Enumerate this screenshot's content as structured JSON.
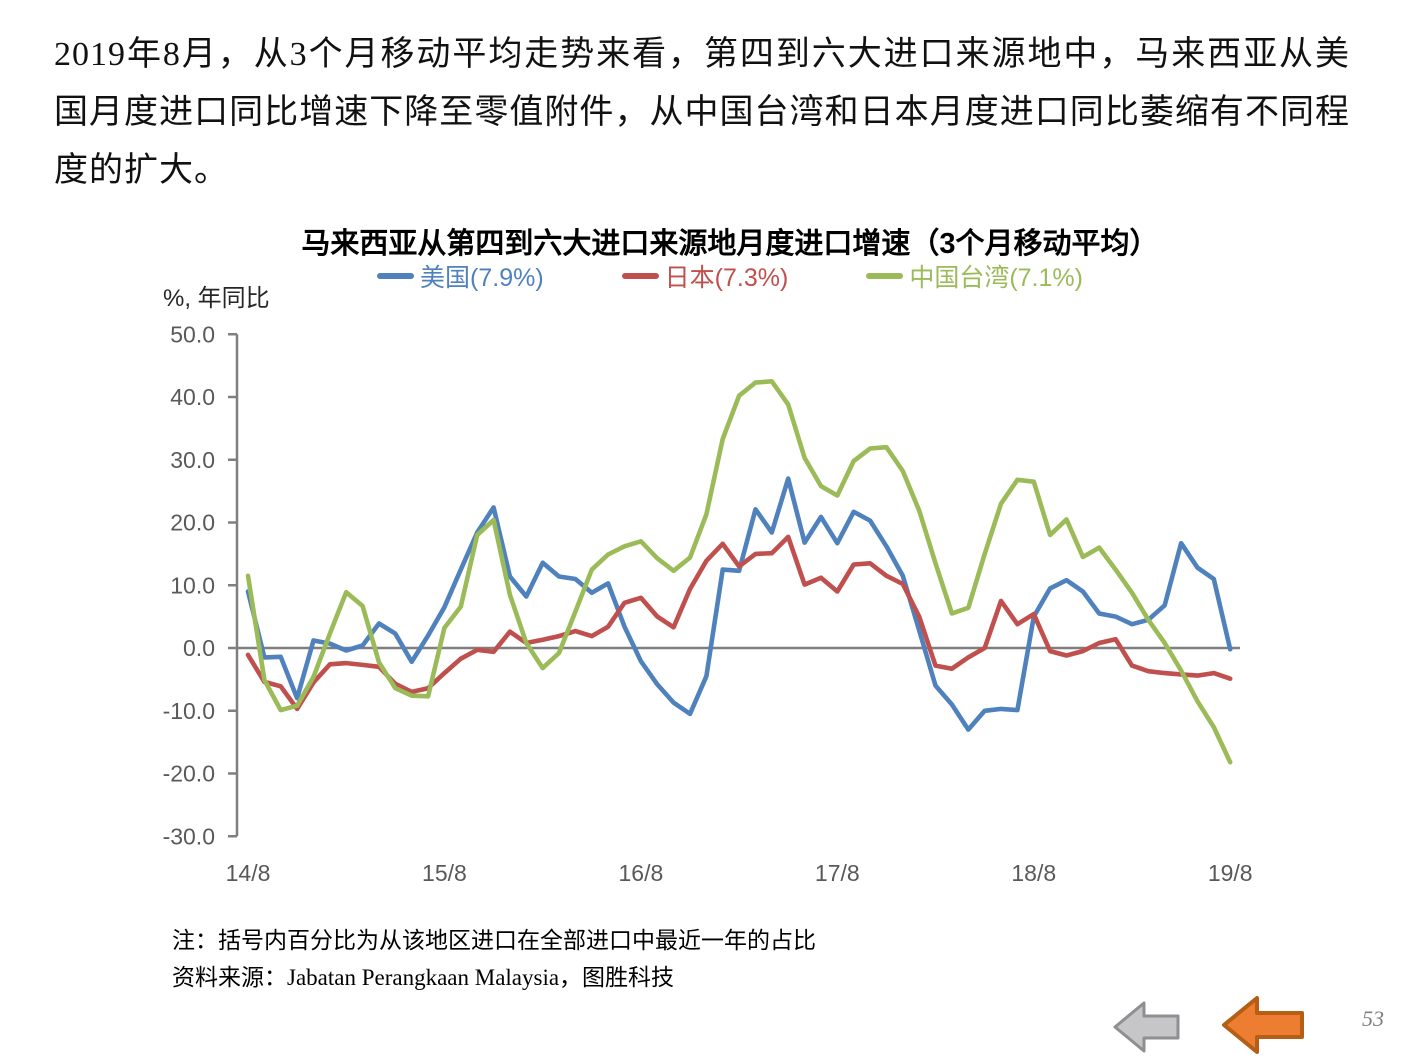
{
  "page": {
    "paragraph": "2019年8月，从3个月移动平均走势来看，第四到六大进口来源地中，马来西亚从美国月度进口同比增速下降至零值附件，从中国台湾和日本月度进口同比萎缩有不同程度的扩大。",
    "page_number": "53"
  },
  "notes": {
    "line1": "注：括号内百分比为从该地区进口在全部进口中最近一年的占比",
    "line2": "资料来源：Jabatan Perangkaan Malaysia，图胜科技"
  },
  "nav": {
    "back_arrow_gray": "left-arrow",
    "back_arrow_orange": "left-arrow"
  },
  "chart_data": {
    "type": "line",
    "title": "马来西亚从第四到六大进口来源地月度进口增速（3个月移动平均）",
    "y_axis_label": "%, 年同比",
    "ylim": [
      -30,
      50
    ],
    "grid": "zero-line-only",
    "legend_position": "top",
    "frequency": "monthly, Aug 2014 (14/8) to Aug 2019 (19/8), 61 points per series",
    "y_ticks": [
      {
        "value": 50,
        "label": "50.0"
      },
      {
        "value": 40,
        "label": "40.0"
      },
      {
        "value": 30,
        "label": "30.0"
      },
      {
        "value": 20,
        "label": "20.0"
      },
      {
        "value": 10,
        "label": "10.0"
      },
      {
        "value": 0,
        "label": "0.0"
      },
      {
        "value": -10,
        "label": "-10.0"
      },
      {
        "value": -20,
        "label": "-20.0"
      },
      {
        "value": -30,
        "label": "-30.0"
      }
    ],
    "x_ticks": [
      {
        "label": "14/8",
        "month_index": 0
      },
      {
        "label": "15/8",
        "month_index": 12
      },
      {
        "label": "16/8",
        "month_index": 24
      },
      {
        "label": "17/8",
        "month_index": 36
      },
      {
        "label": "18/8",
        "month_index": 48
      },
      {
        "label": "19/8",
        "month_index": 60
      }
    ],
    "series": [
      {
        "id": "us",
        "name": "美国(7.9%)",
        "color": "#4F81BD",
        "values": [
          9.0,
          -1.5,
          -1.4,
          -8.0,
          1.2,
          0.7,
          -0.4,
          0.4,
          3.9,
          2.3,
          -2.2,
          2.0,
          6.5,
          12.5,
          18.4,
          22.4,
          11.4,
          8.2,
          13.6,
          11.4,
          11.0,
          8.8,
          10.3,
          3.4,
          -2.1,
          -5.8,
          -8.7,
          -10.5,
          -4.5,
          12.5,
          12.3,
          22.1,
          18.4,
          27.0,
          16.8,
          20.9,
          16.7,
          21.7,
          20.3,
          16.2,
          11.5,
          2.8,
          -6.0,
          -9.0,
          -13.0,
          -10.0,
          -9.7,
          -9.9,
          5.0,
          9.5,
          10.8,
          9.0,
          5.5,
          5.0,
          3.8,
          4.5,
          6.8,
          16.7,
          12.8,
          11.0,
          -0.2
        ]
      },
      {
        "id": "japan",
        "name": "日本(7.3%)",
        "color": "#C0504D",
        "values": [
          -1.1,
          -5.4,
          -6.1,
          -9.7,
          -5.5,
          -2.6,
          -2.4,
          -2.7,
          -3.0,
          -5.7,
          -7.0,
          -6.4,
          -4.0,
          -1.7,
          -0.3,
          -0.6,
          2.6,
          0.8,
          1.3,
          1.9,
          2.7,
          1.9,
          3.4,
          7.2,
          8.0,
          5.0,
          3.3,
          9.4,
          13.9,
          16.6,
          13.0,
          15.0,
          15.1,
          17.7,
          10.1,
          11.2,
          9.0,
          13.3,
          13.5,
          11.5,
          10.2,
          5.0,
          -2.8,
          -3.3,
          -1.5,
          0.0,
          7.5,
          3.8,
          5.4,
          -0.5,
          -1.2,
          -0.5,
          0.8,
          1.4,
          -2.8,
          -3.7,
          -4.0,
          -4.2,
          -4.4,
          -4.0,
          -4.9
        ]
      },
      {
        "id": "taiwan",
        "name": "中国台湾(7.1%)",
        "color": "#9BBB59",
        "values": [
          11.5,
          -5.1,
          -9.9,
          -9.2,
          -4.6,
          2.3,
          8.9,
          6.7,
          -2.3,
          -6.4,
          -7.6,
          -7.7,
          3.2,
          6.6,
          18.0,
          20.4,
          8.5,
          0.8,
          -3.2,
          -0.8,
          5.8,
          12.5,
          14.9,
          16.2,
          17.0,
          14.3,
          12.3,
          14.4,
          21.3,
          33.3,
          40.2,
          42.3,
          42.5,
          38.8,
          30.3,
          25.8,
          24.3,
          29.8,
          31.8,
          32.0,
          28.2,
          21.9,
          13.5,
          5.5,
          6.4,
          15.0,
          23.0,
          26.8,
          26.5,
          18.0,
          20.5,
          14.5,
          16.0,
          12.5,
          8.8,
          4.5,
          0.8,
          -3.6,
          -8.5,
          -12.6,
          -18.2
        ]
      }
    ],
    "colors": {
      "axis": "#7F7F7F",
      "tick_text": "#595959",
      "nav_arrow_gray_fill": "#C6C6C8",
      "nav_arrow_gray_border": "#8F8F91",
      "nav_arrow_orange_fill": "#ED7D31",
      "nav_arrow_orange_border": "#B55E16"
    }
  }
}
